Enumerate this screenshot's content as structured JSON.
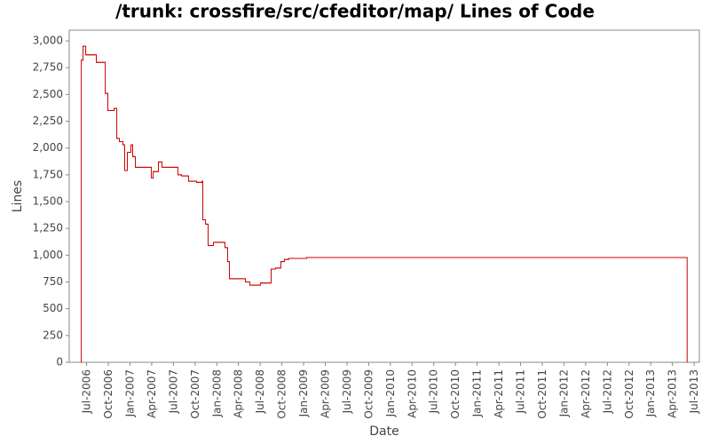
{
  "chart_data": {
    "type": "line",
    "step": "post",
    "title": "/trunk: crossfire/src/cfeditor/map/ Lines of Code",
    "xlabel": "Date",
    "ylabel": "Lines",
    "color": "#cc0000",
    "x": [
      2006.438,
      2006.439,
      2006.459,
      2006.49,
      2006.612,
      2006.715,
      2006.745,
      2006.817,
      2006.848,
      2006.878,
      2006.919,
      2006.939,
      2006.97,
      2007.011,
      2007.031,
      2007.062,
      2007.246,
      2007.267,
      2007.328,
      2007.369,
      2007.553,
      2007.594,
      2007.675,
      2007.767,
      2007.829,
      2007.839,
      2007.87,
      2007.9,
      2007.962,
      2008.094,
      2008.125,
      2008.146,
      2008.33,
      2008.381,
      2008.503,
      2008.626,
      2008.677,
      2008.738,
      2008.779,
      2008.83,
      2009.035,
      2013.419
    ],
    "values": [
      0,
      2820,
      2950,
      2870,
      2800,
      2510,
      2350,
      2370,
      2090,
      2060,
      2030,
      1790,
      1960,
      2030,
      1920,
      1820,
      1720,
      1780,
      1870,
      1820,
      1750,
      1740,
      1690,
      1680,
      1690,
      1330,
      1290,
      1090,
      1120,
      1070,
      940,
      780,
      750,
      720,
      740,
      870,
      880,
      940,
      960,
      970,
      978,
      0
    ],
    "xlim": [
      2006.3,
      2013.56
    ],
    "ylim": [
      0,
      3100
    ],
    "xticks": [
      {
        "value": 2006.5,
        "label": "Jul-2006"
      },
      {
        "value": 2006.75,
        "label": "Oct-2006"
      },
      {
        "value": 2007.0,
        "label": "Jan-2007"
      },
      {
        "value": 2007.25,
        "label": "Apr-2007"
      },
      {
        "value": 2007.5,
        "label": "Jul-2007"
      },
      {
        "value": 2007.75,
        "label": "Oct-2007"
      },
      {
        "value": 2008.0,
        "label": "Jan-2008"
      },
      {
        "value": 2008.25,
        "label": "Apr-2008"
      },
      {
        "value": 2008.5,
        "label": "Jul-2008"
      },
      {
        "value": 2008.75,
        "label": "Oct-2008"
      },
      {
        "value": 2009.0,
        "label": "Jan-2009"
      },
      {
        "value": 2009.25,
        "label": "Apr-2009"
      },
      {
        "value": 2009.5,
        "label": "Jul-2009"
      },
      {
        "value": 2009.75,
        "label": "Oct-2009"
      },
      {
        "value": 2010.0,
        "label": "Jan-2010"
      },
      {
        "value": 2010.25,
        "label": "Apr-2010"
      },
      {
        "value": 2010.5,
        "label": "Jul-2010"
      },
      {
        "value": 2010.75,
        "label": "Oct-2010"
      },
      {
        "value": 2011.0,
        "label": "Jan-2011"
      },
      {
        "value": 2011.25,
        "label": "Apr-2011"
      },
      {
        "value": 2011.5,
        "label": "Jul-2011"
      },
      {
        "value": 2011.75,
        "label": "Oct-2011"
      },
      {
        "value": 2012.0,
        "label": "Jan-2012"
      },
      {
        "value": 2012.25,
        "label": "Apr-2012"
      },
      {
        "value": 2012.5,
        "label": "Jul-2012"
      },
      {
        "value": 2012.75,
        "label": "Oct-2012"
      },
      {
        "value": 2013.0,
        "label": "Jan-2013"
      },
      {
        "value": 2013.25,
        "label": "Apr-2013"
      },
      {
        "value": 2013.5,
        "label": "Jul-2013"
      }
    ],
    "yticks": [
      0,
      250,
      500,
      750,
      {
        "value": 1000,
        "label": "1,000"
      },
      {
        "value": 1250,
        "label": "1,250"
      },
      {
        "value": 1500,
        "label": "1,500"
      },
      {
        "value": 1750,
        "label": "1,750"
      },
      {
        "value": 2000,
        "label": "2,000"
      },
      {
        "value": 2250,
        "label": "2,250"
      },
      {
        "value": 2500,
        "label": "2,500"
      },
      {
        "value": 2750,
        "label": "2,750"
      },
      {
        "value": 3000,
        "label": "3,000"
      }
    ],
    "grid": false
  }
}
